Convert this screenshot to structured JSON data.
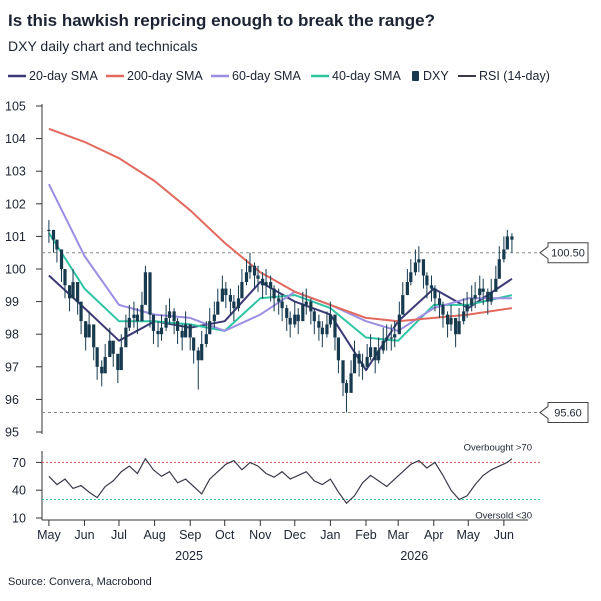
{
  "title": "Is this hawkish repricing enough to break the range?",
  "subtitle": "DXY daily chart and technicals",
  "source": "Source: Convera, Macrobond",
  "colors": {
    "sma20": "#3b3a77",
    "sma200": "#e2695e",
    "sma60": "#9b8ee3",
    "sma40": "#2fc4a4",
    "dxy": "#173a4f",
    "rsi": "#3a3a4a",
    "overbought_line": "#e25c5c",
    "oversold_line": "#2fc4a4",
    "ref_line": "#888888"
  },
  "chart_data": [
    {
      "type": "line",
      "description_role": "price",
      "xlim": [
        "2024-05-01",
        "2026-06-25"
      ],
      "ylim": [
        95,
        105
      ],
      "yticks": [
        95,
        96,
        97,
        98,
        99,
        100,
        101,
        102,
        103,
        104,
        105
      ],
      "x_month_ticks": [
        "May",
        "Jun",
        "Jul",
        "Aug",
        "Sep",
        "Oct",
        "Nov",
        "Dec",
        "Jan",
        "Feb",
        "Mar",
        "Apr",
        "May",
        "Jun"
      ],
      "x_month_dates": [
        "2025-05-01",
        "2025-06-01",
        "2025-07-01",
        "2025-08-01",
        "2025-09-01",
        "2025-10-01",
        "2025-11-01",
        "2025-12-01",
        "2026-01-01",
        "2026-02-01",
        "2026-03-01",
        "2026-04-01",
        "2026-05-01",
        "2026-06-01"
      ],
      "x_year_labels": [
        "2025",
        "2026"
      ],
      "x_year_label_dates": [
        "2025-08-31",
        "2026-03-15"
      ],
      "legend": [
        "20-day SMA",
        "200-day SMA",
        "60-day SMA",
        "40-day SMA",
        "DXY",
        "RSI (14-day)"
      ],
      "reference_lines": [
        {
          "value": 100.5,
          "label": "100.50"
        },
        {
          "value": 95.6,
          "label": "95.60"
        }
      ],
      "series": [
        {
          "name": "DXY",
          "kind": "candles",
          "x": [
            "2025-05-01",
            "2025-05-05",
            "2025-05-08",
            "2025-05-12",
            "2025-05-15",
            "2025-05-19",
            "2025-05-22",
            "2025-05-26",
            "2025-05-29",
            "2025-06-02",
            "2025-06-05",
            "2025-06-09",
            "2025-06-12",
            "2025-06-16",
            "2025-06-19",
            "2025-06-23",
            "2025-06-26",
            "2025-06-30",
            "2025-07-03",
            "2025-07-07",
            "2025-07-10",
            "2025-07-14",
            "2025-07-17",
            "2025-07-21",
            "2025-07-24",
            "2025-07-28",
            "2025-07-31",
            "2025-08-04",
            "2025-08-07",
            "2025-08-11",
            "2025-08-14",
            "2025-08-18",
            "2025-08-21",
            "2025-08-25",
            "2025-08-28",
            "2025-09-01",
            "2025-09-04",
            "2025-09-08",
            "2025-09-11",
            "2025-09-15",
            "2025-09-18",
            "2025-09-22",
            "2025-09-25",
            "2025-09-29",
            "2025-10-02",
            "2025-10-06",
            "2025-10-09",
            "2025-10-13",
            "2025-10-16",
            "2025-10-20",
            "2025-10-23",
            "2025-10-27",
            "2025-10-30",
            "2025-11-03",
            "2025-11-06",
            "2025-11-10",
            "2025-11-13",
            "2025-11-17",
            "2025-11-20",
            "2025-11-24",
            "2025-11-27",
            "2025-12-01",
            "2025-12-04",
            "2025-12-08",
            "2025-12-11",
            "2025-12-15",
            "2025-12-18",
            "2025-12-22",
            "2025-12-25",
            "2025-12-29",
            "2026-01-01",
            "2026-01-05",
            "2026-01-08",
            "2026-01-12",
            "2026-01-15",
            "2026-01-19",
            "2026-01-22",
            "2026-01-26",
            "2026-01-29",
            "2026-02-02",
            "2026-02-05",
            "2026-02-09",
            "2026-02-12",
            "2026-02-16",
            "2026-02-19",
            "2026-02-23",
            "2026-02-26",
            "2026-03-02",
            "2026-03-05",
            "2026-03-09",
            "2026-03-12",
            "2026-03-16",
            "2026-03-19",
            "2026-03-23",
            "2026-03-26",
            "2026-03-30",
            "2026-04-02",
            "2026-04-06",
            "2026-04-09",
            "2026-04-13",
            "2026-04-16",
            "2026-04-20",
            "2026-04-23",
            "2026-04-27",
            "2026-04-30",
            "2026-05-04",
            "2026-05-07",
            "2026-05-11",
            "2026-05-14",
            "2026-05-18",
            "2026-05-21",
            "2026-05-25",
            "2026-05-28",
            "2026-06-01",
            "2026-06-04",
            "2026-06-08"
          ],
          "close": [
            101.2,
            100.9,
            100.6,
            100.0,
            99.5,
            99.1,
            99.6,
            99.0,
            98.4,
            97.9,
            98.3,
            97.6,
            97.0,
            96.8,
            97.3,
            97.8,
            97.4,
            96.9,
            97.6,
            98.2,
            98.5,
            98.6,
            98.4,
            98.9,
            99.9,
            98.6,
            98.1,
            98.0,
            98.2,
            98.5,
            98.7,
            98.4,
            98.1,
            97.9,
            98.3,
            97.9,
            97.5,
            97.2,
            97.7,
            98.0,
            98.4,
            98.6,
            99.0,
            99.4,
            99.2,
            99.0,
            98.8,
            99.1,
            99.6,
            99.9,
            100.1,
            99.8,
            99.7,
            99.5,
            99.6,
            99.4,
            99.1,
            99.0,
            98.8,
            98.5,
            98.3,
            98.6,
            98.4,
            98.9,
            99.0,
            98.7,
            98.4,
            98.2,
            98.0,
            98.3,
            98.6,
            97.9,
            97.2,
            96.5,
            96.2,
            96.8,
            97.4,
            97.1,
            97.0,
            97.3,
            97.6,
            97.2,
            97.5,
            97.8,
            97.9,
            97.9,
            98.0,
            98.6,
            99.2,
            99.6,
            99.9,
            100.2,
            100.3,
            99.8,
            99.5,
            99.4,
            99.1,
            98.9,
            98.6,
            98.3,
            98.5,
            98.0,
            98.4,
            98.7,
            98.9,
            99.1,
            99.2,
            99.4,
            99.3,
            99.0,
            99.3,
            99.7,
            100.3,
            100.6,
            101.0,
            100.9
          ],
          "high": [
            101.5,
            101.2,
            100.9,
            100.4,
            99.9,
            99.5,
            100.0,
            99.4,
            98.8,
            98.3,
            98.7,
            98.0,
            97.4,
            97.2,
            97.7,
            98.2,
            97.8,
            97.3,
            98.0,
            98.6,
            98.9,
            99.0,
            98.8,
            99.3,
            100.1,
            99.0,
            98.5,
            98.4,
            98.6,
            98.9,
            99.1,
            98.8,
            98.5,
            98.3,
            98.7,
            98.3,
            97.9,
            97.6,
            98.1,
            98.4,
            98.8,
            99.0,
            99.4,
            99.8,
            99.6,
            99.4,
            99.2,
            99.5,
            100.0,
            100.3,
            100.5,
            100.2,
            100.1,
            99.9,
            100.0,
            99.8,
            99.5,
            99.4,
            99.2,
            98.9,
            98.7,
            99.0,
            98.8,
            99.3,
            99.4,
            99.1,
            98.8,
            98.6,
            98.4,
            98.7,
            99.0,
            98.3,
            97.6,
            96.9,
            96.6,
            97.2,
            97.8,
            97.5,
            97.4,
            97.7,
            98.0,
            97.6,
            97.9,
            98.2,
            98.3,
            98.3,
            98.4,
            99.0,
            99.6,
            100.0,
            100.3,
            100.6,
            100.7,
            100.2,
            99.9,
            99.8,
            99.5,
            99.3,
            99.0,
            98.7,
            98.9,
            98.4,
            98.8,
            99.1,
            99.3,
            99.5,
            99.6,
            99.8,
            99.7,
            99.4,
            99.7,
            100.1,
            100.7,
            101.0,
            101.2,
            101.1
          ],
          "low": [
            100.8,
            100.5,
            100.2,
            99.6,
            99.1,
            98.7,
            99.2,
            98.6,
            98.0,
            97.5,
            97.9,
            97.2,
            96.6,
            96.4,
            96.9,
            97.4,
            97.0,
            96.5,
            97.2,
            97.8,
            98.1,
            98.2,
            98.0,
            98.5,
            99.3,
            98.2,
            97.7,
            97.6,
            97.8,
            98.1,
            98.3,
            98.0,
            97.7,
            97.5,
            97.9,
            97.5,
            97.1,
            96.3,
            97.3,
            97.6,
            98.0,
            98.2,
            98.6,
            99.0,
            98.8,
            98.6,
            98.4,
            98.7,
            99.2,
            99.5,
            99.7,
            99.4,
            99.3,
            99.1,
            99.2,
            99.0,
            98.7,
            98.6,
            98.4,
            98.1,
            97.9,
            98.2,
            98.0,
            98.5,
            98.6,
            98.3,
            98.0,
            97.8,
            97.6,
            97.9,
            98.2,
            97.5,
            96.8,
            96.1,
            95.6,
            96.4,
            97.0,
            96.7,
            96.6,
            96.9,
            97.2,
            96.8,
            97.1,
            97.4,
            97.5,
            97.5,
            97.6,
            98.2,
            98.8,
            99.2,
            99.5,
            99.8,
            99.9,
            99.4,
            99.1,
            99.0,
            98.7,
            98.5,
            98.2,
            97.9,
            98.1,
            97.6,
            98.0,
            98.3,
            98.5,
            98.7,
            98.8,
            99.0,
            98.9,
            98.6,
            98.9,
            99.3,
            99.9,
            100.2,
            100.6,
            100.5
          ]
        },
        {
          "name": "20-day SMA",
          "x": [
            "2025-05-01",
            "2025-06-01",
            "2025-07-01",
            "2025-08-01",
            "2025-09-01",
            "2025-10-01",
            "2025-11-01",
            "2025-12-01",
            "2026-01-01",
            "2026-02-01",
            "2026-03-01",
            "2026-04-01",
            "2026-05-01",
            "2026-06-08"
          ],
          "values": [
            99.8,
            98.8,
            97.8,
            98.4,
            98.2,
            98.4,
            99.6,
            99.0,
            98.6,
            96.9,
            98.4,
            99.4,
            98.8,
            99.7
          ]
        },
        {
          "name": "40-day SMA",
          "x": [
            "2025-05-01",
            "2025-06-01",
            "2025-07-01",
            "2025-08-01",
            "2025-09-01",
            "2025-10-01",
            "2025-11-01",
            "2025-12-01",
            "2026-01-01",
            "2026-02-01",
            "2026-03-01",
            "2026-04-01",
            "2026-05-01",
            "2026-06-08"
          ],
          "values": [
            101.1,
            99.4,
            98.4,
            98.4,
            98.3,
            98.1,
            99.1,
            99.2,
            98.8,
            97.9,
            97.8,
            98.9,
            98.9,
            99.2
          ]
        },
        {
          "name": "60-day SMA",
          "x": [
            "2025-05-01",
            "2025-06-01",
            "2025-07-01",
            "2025-08-01",
            "2025-09-01",
            "2025-10-01",
            "2025-11-01",
            "2025-12-01",
            "2026-01-01",
            "2026-02-01",
            "2026-03-01",
            "2026-04-01",
            "2026-05-01",
            "2026-06-08"
          ],
          "values": [
            102.6,
            100.4,
            98.9,
            98.6,
            98.5,
            98.1,
            98.6,
            99.3,
            98.9,
            98.4,
            98.1,
            98.8,
            99.1,
            99.1
          ]
        },
        {
          "name": "200-day SMA",
          "x": [
            "2025-05-01",
            "2025-06-01",
            "2025-07-01",
            "2025-08-01",
            "2025-09-01",
            "2025-10-01",
            "2025-11-01",
            "2025-12-01",
            "2026-01-01",
            "2026-02-01",
            "2026-03-01",
            "2026-04-01",
            "2026-05-01",
            "2026-06-08"
          ],
          "values": [
            104.3,
            103.9,
            103.4,
            102.7,
            101.8,
            100.8,
            99.9,
            99.3,
            98.9,
            98.5,
            98.4,
            98.5,
            98.6,
            98.8
          ]
        }
      ]
    },
    {
      "type": "line",
      "description_role": "rsi",
      "ylim": [
        10,
        78
      ],
      "yticks": [
        10,
        40,
        70
      ],
      "thresholds": [
        {
          "value": 70,
          "label": "Overbought >70"
        },
        {
          "value": 30,
          "label": "Oversold <30"
        }
      ],
      "series": [
        {
          "name": "RSI (14-day)",
          "x": [
            "2025-05-01",
            "2025-05-08",
            "2025-05-15",
            "2025-05-22",
            "2025-05-29",
            "2025-06-05",
            "2025-06-12",
            "2025-06-19",
            "2025-06-26",
            "2025-07-03",
            "2025-07-10",
            "2025-07-17",
            "2025-07-24",
            "2025-07-31",
            "2025-08-07",
            "2025-08-14",
            "2025-08-21",
            "2025-08-28",
            "2025-09-04",
            "2025-09-11",
            "2025-09-18",
            "2025-09-25",
            "2025-10-02",
            "2025-10-09",
            "2025-10-16",
            "2025-10-23",
            "2025-10-30",
            "2025-11-06",
            "2025-11-13",
            "2025-11-20",
            "2025-11-27",
            "2025-12-04",
            "2025-12-11",
            "2025-12-18",
            "2025-12-25",
            "2026-01-01",
            "2026-01-08",
            "2026-01-15",
            "2026-01-22",
            "2026-01-29",
            "2026-02-05",
            "2026-02-12",
            "2026-02-19",
            "2026-02-26",
            "2026-03-05",
            "2026-03-12",
            "2026-03-19",
            "2026-03-26",
            "2026-04-02",
            "2026-04-09",
            "2026-04-16",
            "2026-04-23",
            "2026-04-30",
            "2026-05-07",
            "2026-05-14",
            "2026-05-21",
            "2026-05-28",
            "2026-06-04",
            "2026-06-08"
          ],
          "values": [
            55,
            46,
            52,
            42,
            45,
            38,
            32,
            44,
            50,
            60,
            66,
            58,
            74,
            62,
            55,
            60,
            48,
            52,
            44,
            36,
            52,
            60,
            68,
            72,
            62,
            70,
            66,
            58,
            54,
            60,
            52,
            56,
            60,
            50,
            46,
            52,
            38,
            26,
            34,
            48,
            56,
            50,
            44,
            52,
            60,
            68,
            72,
            64,
            70,
            56,
            40,
            30,
            34,
            46,
            56,
            62,
            66,
            70,
            74
          ]
        }
      ]
    }
  ]
}
